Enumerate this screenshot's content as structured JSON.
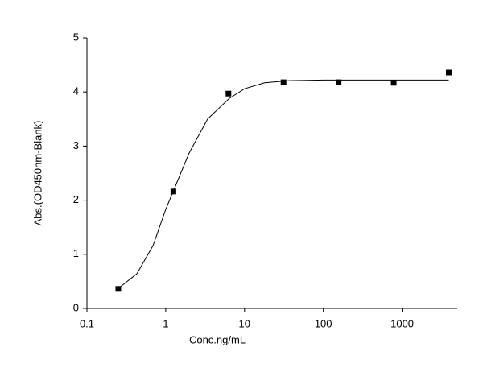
{
  "chart_data": {
    "type": "scatter",
    "x_label": "Conc.ng/mL",
    "y_label": "Abs.(OD450nm-Blank)",
    "x_log": true,
    "xlim": [
      0.1,
      5000
    ],
    "xticks": [
      0.1,
      1,
      10,
      100,
      1000
    ],
    "ylim": [
      0,
      5
    ],
    "yticks": [
      0,
      1,
      2,
      3,
      4,
      5
    ],
    "grid": false,
    "series": [
      {
        "mode": "markers",
        "marker": "square",
        "color": "#000000",
        "x": [
          0.25,
          1.25,
          6.25,
          31.25,
          156.25,
          781.25,
          3906.25
        ],
        "values": [
          0.36,
          2.16,
          3.97,
          4.18,
          4.18,
          4.17,
          4.36
        ]
      },
      {
        "mode": "line",
        "color": "#000000",
        "x": [
          0.25,
          0.43,
          0.69,
          1,
          1.98,
          3.4,
          6.4,
          10,
          18,
          37,
          100,
          1000,
          3906.25
        ],
        "values": [
          0.37,
          0.64,
          1.16,
          1.83,
          2.87,
          3.5,
          3.88,
          4.06,
          4.17,
          4.21,
          4.22,
          4.22,
          4.22
        ]
      }
    ]
  }
}
